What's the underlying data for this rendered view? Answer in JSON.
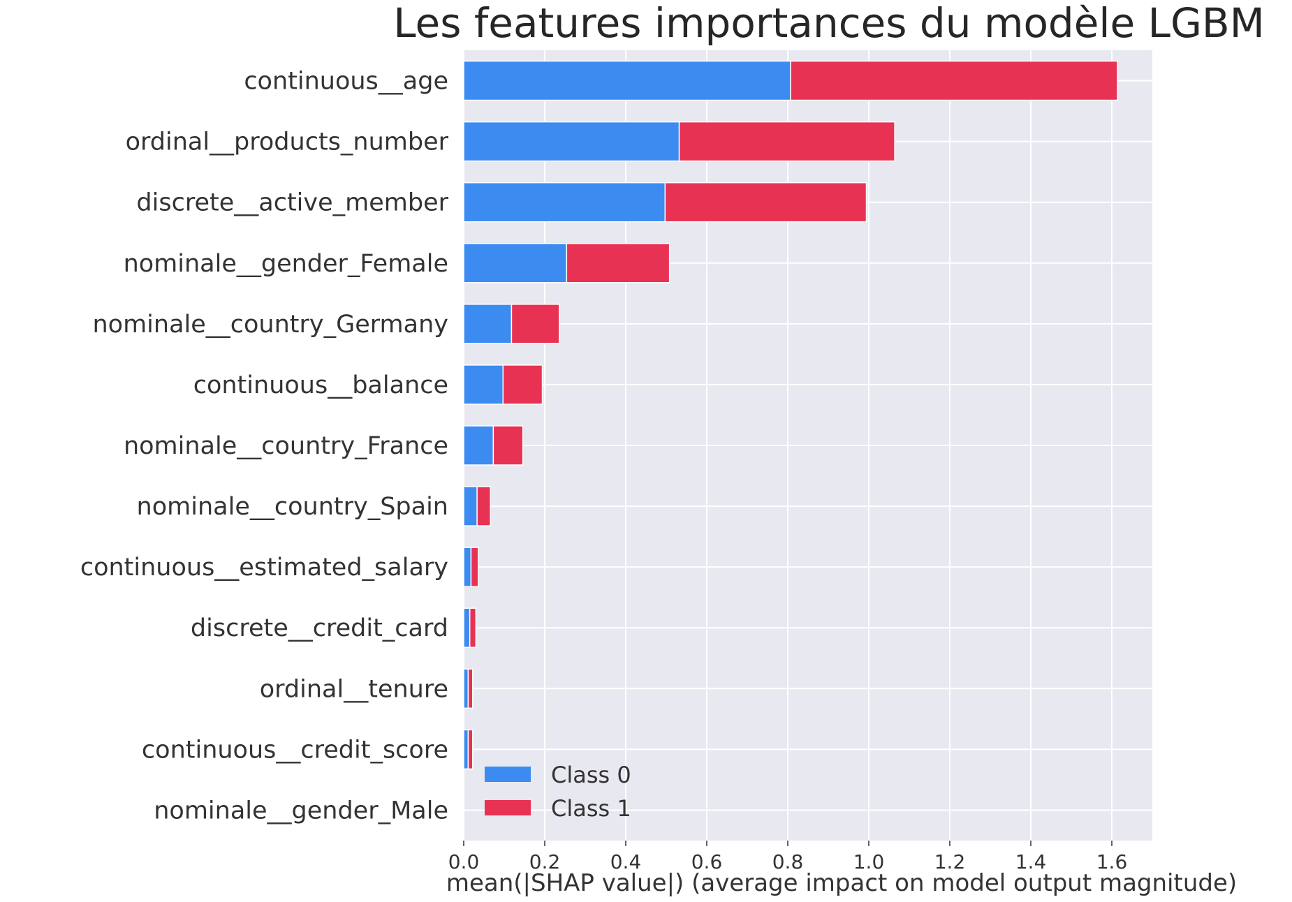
{
  "chart_data": {
    "type": "bar",
    "orientation": "horizontal",
    "stacked": true,
    "title": "Les features importances du modèle LGBM",
    "xlabel": "mean(|SHAP value|) (average impact on model output magnitude)",
    "ylabel": "",
    "xlim": [
      0,
      1.7
    ],
    "xticks": [
      "0.0",
      "0.2",
      "0.4",
      "0.6",
      "0.8",
      "1.0",
      "1.2",
      "1.4",
      "1.6"
    ],
    "grid": true,
    "legend_position": "bottom-left",
    "categories": [
      "continuous__age",
      "ordinal__products_number",
      "discrete__active_member",
      "nominale__gender_Female",
      "nominale__country_Germany",
      "continuous__balance",
      "nominale__country_France",
      "nominale__country_Spain",
      "continuous__estimated_salary",
      "discrete__credit_card",
      "ordinal__tenure",
      "continuous__credit_score",
      "nominale__gender_Male"
    ],
    "series": [
      {
        "name": "Class 0",
        "color": "#3b8bf1",
        "values": [
          0.807,
          0.532,
          0.497,
          0.254,
          0.118,
          0.097,
          0.073,
          0.033,
          0.018,
          0.015,
          0.011,
          0.011,
          0.0
        ]
      },
      {
        "name": "Class 1",
        "color": "#e83254",
        "values": [
          0.807,
          0.532,
          0.497,
          0.254,
          0.118,
          0.097,
          0.073,
          0.033,
          0.018,
          0.015,
          0.011,
          0.011,
          0.0
        ]
      }
    ]
  }
}
